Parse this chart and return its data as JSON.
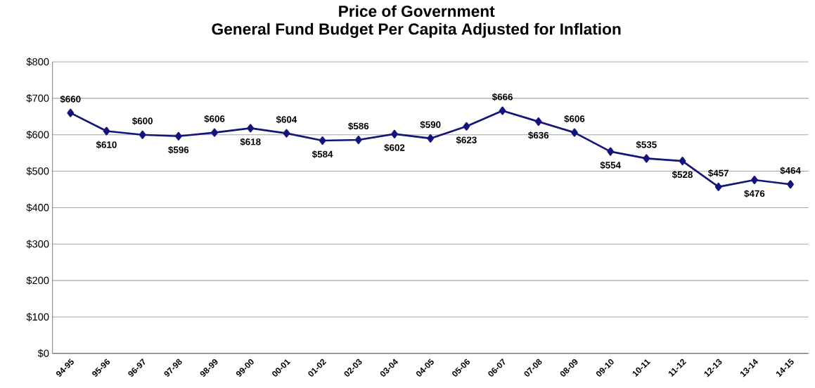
{
  "chart_data": {
    "type": "line",
    "title": "Price of Government",
    "subtitle": "General Fund Budget Per Capita Adjusted for Inflation",
    "categories": [
      "94-95",
      "95-96",
      "96-97",
      "97-98",
      "98-99",
      "99-00",
      "00-01",
      "01-02",
      "02-03",
      "03-04",
      "04-05",
      "05-06",
      "06-07",
      "07-08",
      "08-09",
      "09-10",
      "10-11",
      "11-12",
      "12-13",
      "13-14",
      "14-15"
    ],
    "series": [
      {
        "color": "#14147d",
        "values": [
          660,
          610,
          600,
          596,
          606,
          618,
          604,
          584,
          586,
          602,
          590,
          623,
          666,
          636,
          606,
          554,
          535,
          528,
          457,
          476,
          464
        ],
        "value_labels": [
          "$660",
          "$610",
          "$600",
          "$596",
          "$606",
          "$618",
          "$604",
          "$584",
          "$586",
          "$602",
          "$590",
          "$623",
          "$666",
          "$636",
          "$606",
          "$554",
          "$535",
          "$528",
          "$457",
          "$476",
          "$464"
        ]
      }
    ],
    "ylim": [
      0,
      800
    ],
    "yticks": [
      {
        "value": 0,
        "label": "$0"
      },
      {
        "value": 100,
        "label": "$100"
      },
      {
        "value": 200,
        "label": "$200"
      },
      {
        "value": 300,
        "label": "$300"
      },
      {
        "value": 400,
        "label": "$400"
      },
      {
        "value": 500,
        "label": "$500"
      },
      {
        "value": 600,
        "label": "$600"
      },
      {
        "value": 700,
        "label": "$700"
      },
      {
        "value": 800,
        "label": "$800"
      }
    ],
    "grid": "y",
    "marker": "diamond",
    "line_style": "solid"
  }
}
